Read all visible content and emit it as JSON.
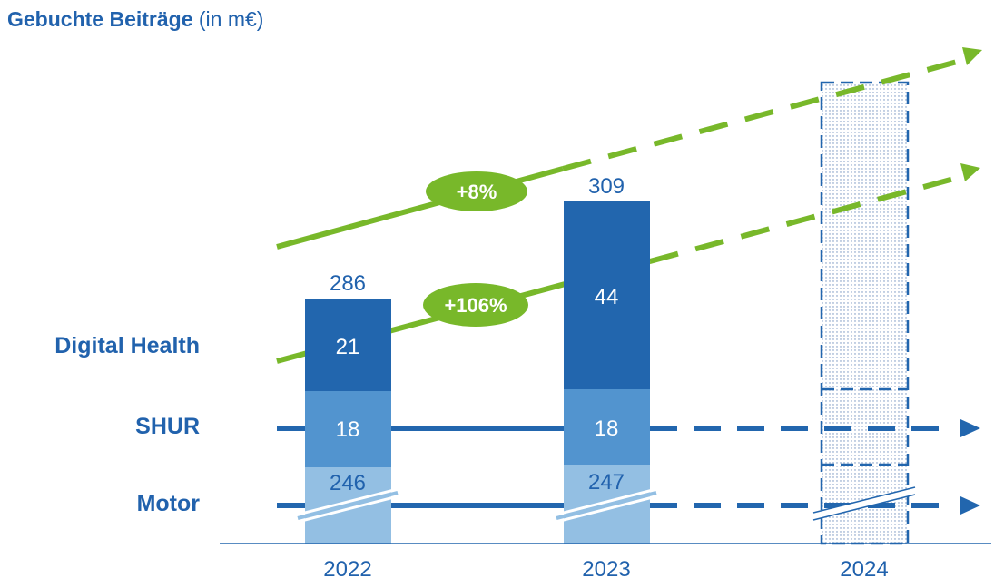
{
  "title": {
    "bold": "Gebuchte Beiträge",
    "unit": "(in m€)"
  },
  "colors": {
    "digital_health": "#2266ae",
    "shur": "#5294cf",
    "motor": "#93bfe3",
    "growth": "#78b82a",
    "text": "#2162ad"
  },
  "chart_data": {
    "type": "bar",
    "stacked": true,
    "broken_axis": true,
    "categories": [
      "2022",
      "2023",
      "2024"
    ],
    "series": [
      {
        "name": "Motor",
        "values": [
          246,
          247,
          null
        ]
      },
      {
        "name": "SHUR",
        "values": [
          18,
          18,
          null
        ]
      },
      {
        "name": "Digital Health",
        "values": [
          21,
          44,
          null
        ]
      }
    ],
    "totals": [
      286,
      309,
      null
    ],
    "projection_category": "2024",
    "annotations": [
      {
        "label": "+8%",
        "applies_to": "total"
      },
      {
        "label": "+106%",
        "applies_to": "Digital Health"
      }
    ],
    "legend": "left"
  }
}
